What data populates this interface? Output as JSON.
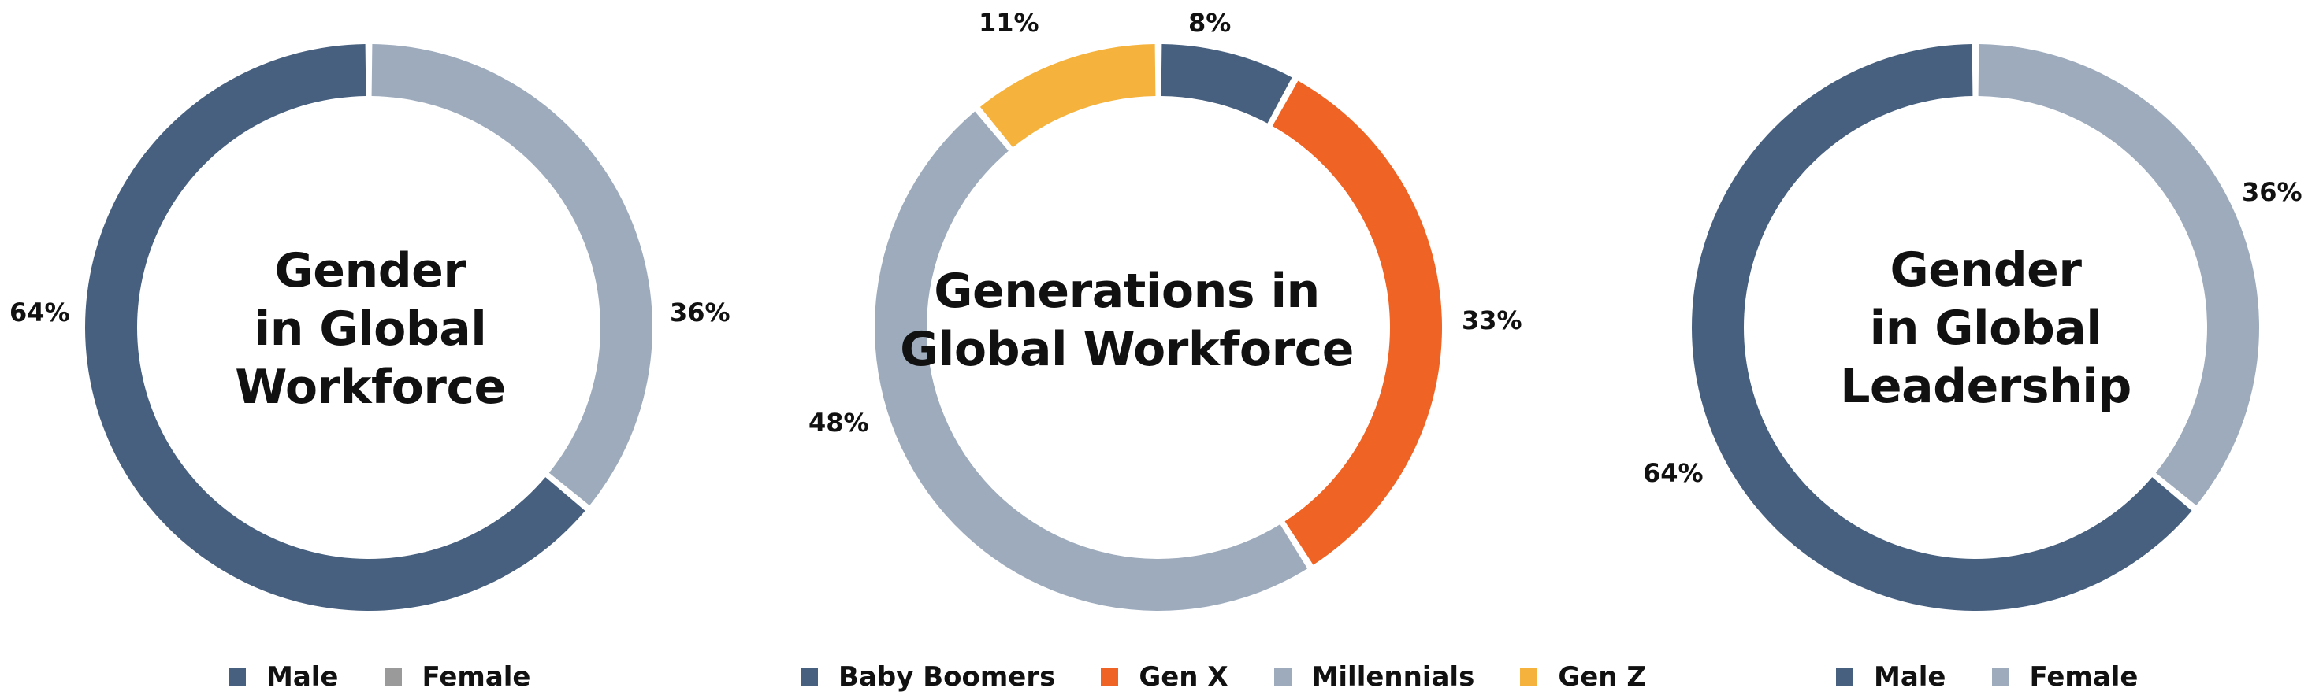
{
  "colors": {
    "male": "#47607f",
    "female_ring": "#9dabbd",
    "female_legend_left": "#9a9a9a",
    "female_legend_right": "#9dabbd",
    "baby_boomers": "#47607f",
    "gen_x": "#ef6424",
    "millennials": "#9dabbd",
    "gen_z": "#f5b23c"
  },
  "charts": [
    {
      "title_lines": [
        "Gender",
        "in Global",
        "Workforce"
      ],
      "pct_labels": [
        "64%",
        "36%"
      ],
      "legend": [
        "Male",
        "Female"
      ]
    },
    {
      "title_lines": [
        "Generations in",
        "Global Workforce"
      ],
      "pct_labels": [
        "8%",
        "33%",
        "48%",
        "11%"
      ],
      "legend": [
        "Baby Boomers",
        "Gen X",
        "Millennials",
        "Gen Z"
      ]
    },
    {
      "title_lines": [
        "Gender",
        "in Global",
        "Leadership"
      ],
      "pct_labels": [
        "36%",
        "64%"
      ],
      "legend": [
        "Male",
        "Female"
      ]
    }
  ],
  "chart_data": [
    {
      "type": "pie",
      "title": "Gender in Global Workforce",
      "categories": [
        "Male",
        "Female"
      ],
      "values": [
        64,
        36
      ],
      "unit": "%",
      "legend_position": "bottom"
    },
    {
      "type": "pie",
      "title": "Generations in Global Workforce",
      "categories": [
        "Baby Boomers",
        "Gen X",
        "Millennials",
        "Gen Z"
      ],
      "values": [
        8,
        33,
        48,
        11
      ],
      "unit": "%",
      "legend_position": "bottom"
    },
    {
      "type": "pie",
      "title": "Gender in Global Leadership",
      "categories": [
        "Male",
        "Female"
      ],
      "values": [
        64,
        36
      ],
      "unit": "%",
      "legend_position": "bottom"
    }
  ]
}
